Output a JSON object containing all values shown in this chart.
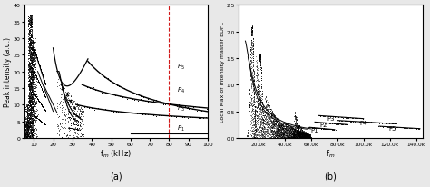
{
  "fig_width": 4.74,
  "fig_height": 2.07,
  "dpi": 100,
  "left_panel": {
    "xlim": [
      5,
      100
    ],
    "ylim": [
      0,
      40
    ],
    "xlabel": "f$_m$ (kHz)",
    "ylabel": "Peak intensity (a.u.)",
    "xticks": [
      10,
      20,
      30,
      40,
      50,
      60,
      70,
      80,
      90,
      100
    ],
    "yticks": [
      0,
      5,
      10,
      15,
      20,
      25,
      30,
      35,
      40
    ],
    "dashed_vline_x": 80,
    "dashed_vline_color": "#cc0000",
    "label_a": "(a)"
  },
  "right_panel": {
    "xlim": [
      5000,
      145000
    ],
    "ylim": [
      0,
      2.5
    ],
    "xlabel": "f$_m$",
    "ylabel": "Local Max of Intensity master EDFL",
    "xticks": [
      20000,
      40000,
      60000,
      80000,
      100000,
      120000,
      140000
    ],
    "xticklabels": [
      "20.0k",
      "40.0k",
      "60.0k",
      "80.0k",
      "100.0k",
      "120.0k",
      "140.0k"
    ],
    "yticks": [
      0.0,
      0.5,
      1.0,
      1.5,
      2.0,
      2.5
    ],
    "label_b": "(b)"
  },
  "background_color": "#e8e8e8",
  "plot_bg_color": "#ffffff"
}
